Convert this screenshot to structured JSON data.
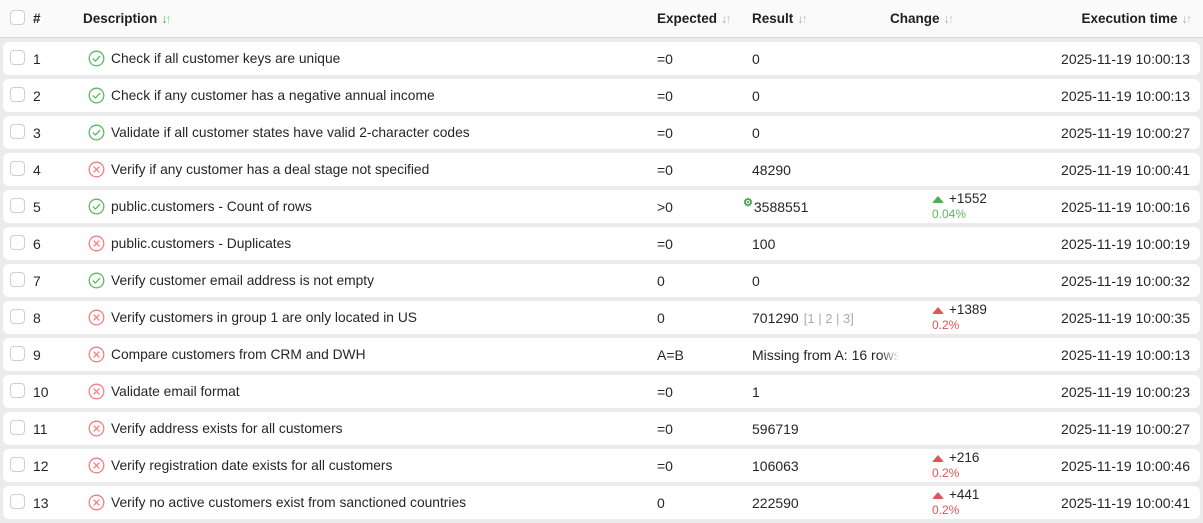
{
  "table": {
    "header": {
      "select_all_checked": false,
      "columns": [
        {
          "key": "number",
          "label": "#",
          "sortable": false
        },
        {
          "key": "description",
          "label": "Description",
          "sortable": true,
          "sort_active": true
        },
        {
          "key": "expected",
          "label": "Expected",
          "sortable": true,
          "sort_active": false
        },
        {
          "key": "result",
          "label": "Result",
          "sortable": true,
          "sort_active": false
        },
        {
          "key": "change",
          "label": "Change",
          "sortable": true,
          "sort_active": false
        },
        {
          "key": "execution_time",
          "label": "Execution time",
          "sortable": true,
          "sort_active": false
        }
      ]
    },
    "rows": [
      {
        "number": "1",
        "status": "pass",
        "description": "Check if all customer keys are unique",
        "expected": "=0",
        "result": "0",
        "execution_time": "2025-11-19 10:00:13"
      },
      {
        "number": "2",
        "status": "pass",
        "description": "Check if any customer has a negative annual income",
        "expected": "=0",
        "result": "0",
        "execution_time": "2025-11-19 10:00:13"
      },
      {
        "number": "3",
        "status": "pass",
        "description": "Validate if all customer states have valid 2-character codes",
        "expected": "=0",
        "result": "0",
        "execution_time": "2025-11-19 10:00:27"
      },
      {
        "number": "4",
        "status": "fail",
        "description": "Verify if any customer has a deal stage not specified",
        "expected": "=0",
        "result": "48290",
        "execution_time": "2025-11-19 10:00:41"
      },
      {
        "number": "5",
        "status": "pass",
        "description": "public.customers - Count of rows",
        "expected": ">0",
        "result": "3588551",
        "result_gear": true,
        "change": {
          "direction": "up",
          "color": "green",
          "value": "+1552",
          "percent": "0.04%"
        },
        "execution_time": "2025-11-19 10:00:16"
      },
      {
        "number": "6",
        "status": "fail",
        "description": "public.customers - Duplicates",
        "expected": "=0",
        "result": "100",
        "execution_time": "2025-11-19 10:00:19"
      },
      {
        "number": "7",
        "status": "pass",
        "description": "Verify customer email address is not empty",
        "expected": "0",
        "result": "0",
        "execution_time": "2025-11-19 10:00:32"
      },
      {
        "number": "8",
        "status": "fail",
        "description": "Verify customers in group 1 are only located in US",
        "expected": "0",
        "result": "701290",
        "result_links": [
          "1",
          "2",
          "3"
        ],
        "change": {
          "direction": "up",
          "color": "red",
          "value": "+1389",
          "percent": "0.2%"
        },
        "execution_time": "2025-11-19 10:00:35"
      },
      {
        "number": "9",
        "status": "fail",
        "description": "Compare customers from CRM and DWH",
        "expected": "A=B",
        "result": "Missing from A: 16 rows",
        "result_truncated": true,
        "execution_time": "2025-11-19 10:00:13"
      },
      {
        "number": "10",
        "status": "fail",
        "description": "Validate email format",
        "expected": "=0",
        "result": "1",
        "execution_time": "2025-11-19 10:00:23"
      },
      {
        "number": "11",
        "status": "fail",
        "description": "Verify address exists for all customers",
        "expected": "=0",
        "result": "596719",
        "execution_time": "2025-11-19 10:00:27"
      },
      {
        "number": "12",
        "status": "fail",
        "description": "Verify registration date exists for all customers",
        "expected": "=0",
        "result": "106063",
        "change": {
          "direction": "up",
          "color": "red",
          "value": "+216",
          "percent": "0.2%"
        },
        "execution_time": "2025-11-19 10:00:46"
      },
      {
        "number": "13",
        "status": "fail",
        "description": "Verify no active customers exist from sanctioned countries",
        "expected": "0",
        "result": "222590",
        "change": {
          "direction": "up",
          "color": "red",
          "value": "+441",
          "percent": "0.2%"
        },
        "execution_time": "2025-11-19 10:00:41"
      }
    ],
    "icons": {
      "pass": "check-circle-icon",
      "fail": "x-circle-icon",
      "gear": "gear-icon",
      "sort": "sort-arrows-icon"
    },
    "colors": {
      "pass_green": "#5cb85f",
      "fail_red": "#f47d7d",
      "change_up_green": "#4caf50",
      "change_up_red": "#e05555",
      "percent_green": "#5cb85f",
      "percent_red": "#e05555",
      "sort_active_green": "#4caf50",
      "muted_gray": "#ababab"
    }
  }
}
